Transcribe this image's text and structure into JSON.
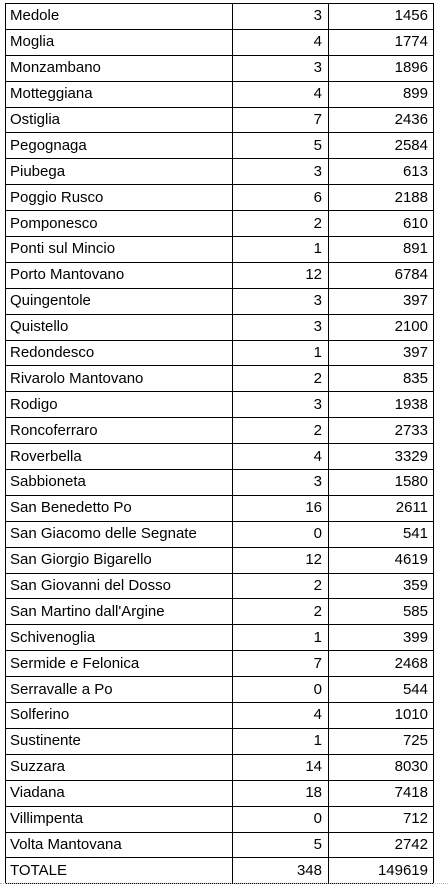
{
  "rows": [
    {
      "name": "Medole",
      "a": "3",
      "b": "1456"
    },
    {
      "name": "Moglia",
      "a": "4",
      "b": "1774"
    },
    {
      "name": "Monzambano",
      "a": "3",
      "b": "1896"
    },
    {
      "name": "Motteggiana",
      "a": "4",
      "b": "899"
    },
    {
      "name": "Ostiglia",
      "a": "7",
      "b": "2436"
    },
    {
      "name": "Pegognaga",
      "a": "5",
      "b": "2584"
    },
    {
      "name": "Piubega",
      "a": "3",
      "b": "613"
    },
    {
      "name": "Poggio Rusco",
      "a": "6",
      "b": "2188"
    },
    {
      "name": "Pomponesco",
      "a": "2",
      "b": "610"
    },
    {
      "name": "Ponti sul Mincio",
      "a": "1",
      "b": "891"
    },
    {
      "name": "Porto Mantovano",
      "a": "12",
      "b": "6784"
    },
    {
      "name": "Quingentole",
      "a": "3",
      "b": "397"
    },
    {
      "name": "Quistello",
      "a": "3",
      "b": "2100"
    },
    {
      "name": "Redondesco",
      "a": "1",
      "b": "397"
    },
    {
      "name": "Rivarolo Mantovano",
      "a": "2",
      "b": "835"
    },
    {
      "name": "Rodigo",
      "a": "3",
      "b": "1938"
    },
    {
      "name": "Roncoferraro",
      "a": "2",
      "b": "2733"
    },
    {
      "name": "Roverbella",
      "a": "4",
      "b": "3329"
    },
    {
      "name": "Sabbioneta",
      "a": "3",
      "b": "1580"
    },
    {
      "name": "San Benedetto Po",
      "a": "16",
      "b": "2611"
    },
    {
      "name": "San Giacomo delle Segnate",
      "a": "0",
      "b": "541"
    },
    {
      "name": "San Giorgio Bigarello",
      "a": "12",
      "b": "4619"
    },
    {
      "name": "San Giovanni del Dosso",
      "a": "2",
      "b": "359"
    },
    {
      "name": "San Martino dall'Argine",
      "a": "2",
      "b": "585"
    },
    {
      "name": "Schivenoglia",
      "a": "1",
      "b": "399"
    },
    {
      "name": "Sermide e Felonica",
      "a": "7",
      "b": "2468"
    },
    {
      "name": "Serravalle a Po",
      "a": "0",
      "b": "544"
    },
    {
      "name": "Solferino",
      "a": "4",
      "b": "1010"
    },
    {
      "name": "Sustinente",
      "a": "1",
      "b": "725"
    },
    {
      "name": "Suzzara",
      "a": "14",
      "b": "8030"
    },
    {
      "name": "Viadana",
      "a": "18",
      "b": "7418"
    },
    {
      "name": "Villimpenta",
      "a": "0",
      "b": "712"
    },
    {
      "name": "Volta Mantovana",
      "a": "5",
      "b": "2742"
    }
  ],
  "total": {
    "name": "TOTALE",
    "a": "348",
    "b": "149619"
  }
}
